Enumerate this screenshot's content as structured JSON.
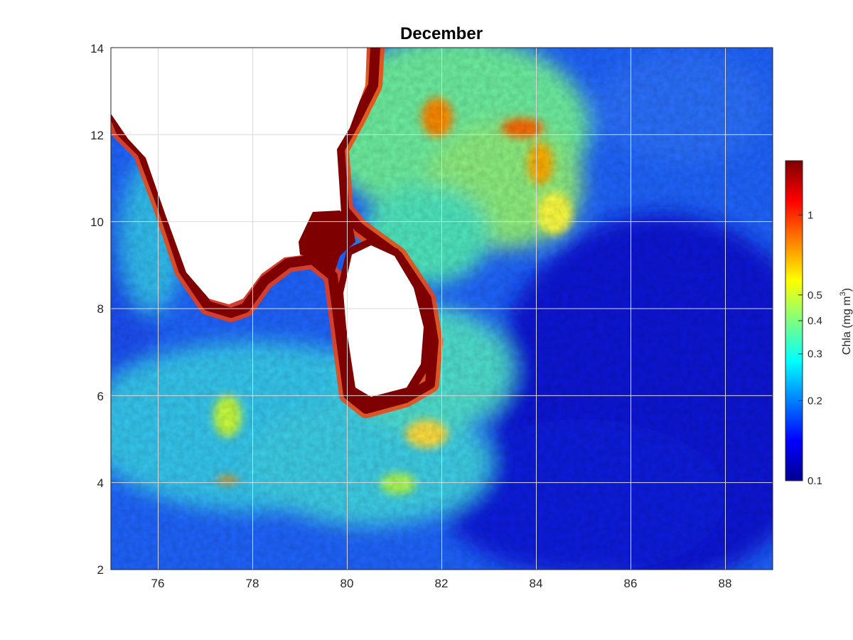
{
  "chart_data": {
    "type": "heatmap",
    "title": "December",
    "xlabel": "",
    "ylabel": "",
    "xlim": [
      75,
      89
    ],
    "ylim": [
      2,
      14
    ],
    "x_ticks": [
      "76",
      "78",
      "80",
      "82",
      "84",
      "86",
      "88"
    ],
    "y_ticks": [
      "2",
      "4",
      "6",
      "8",
      "10",
      "12",
      "14"
    ],
    "grid": true,
    "colormap": "jet",
    "colorbar": {
      "scale": "log",
      "range": [
        0.1,
        1.6
      ],
      "ticks": [
        {
          "value": 0.1,
          "label": "0.1"
        },
        {
          "value": 0.2,
          "label": "0.2"
        },
        {
          "value": 0.3,
          "label": "0.3"
        },
        {
          "value": 0.4,
          "label": "0.4"
        },
        {
          "value": 0.5,
          "label": "0.5"
        },
        {
          "value": 1,
          "label": "1"
        }
      ],
      "label_main": "Chla (mg m",
      "label_sup": "3",
      "label_end": ")"
    },
    "regions": {
      "land_color": "#ffffff",
      "coastal_max_color": "#7f0000",
      "open_ocean_low_value": 0.12,
      "nearshore_value": 0.35,
      "bay_of_bengal_bloom_value": 0.5
    }
  }
}
